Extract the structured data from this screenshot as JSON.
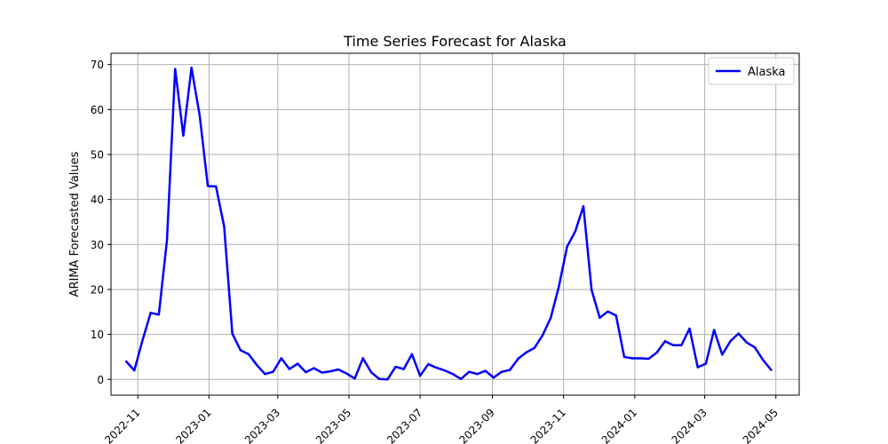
{
  "chart_data": {
    "type": "line",
    "title": "Time Series Forecast for Alaska",
    "xlabel": "",
    "ylabel": "ARIMA Forecasted Values",
    "ylim": [
      -3.5,
      72.5
    ],
    "xlim": [
      "2022-10-09",
      "2024-05-21"
    ],
    "yticks": [
      0,
      10,
      20,
      30,
      40,
      50,
      60,
      70
    ],
    "xticks": [
      "2022-11",
      "2023-01",
      "2023-03",
      "2023-05",
      "2023-07",
      "2023-09",
      "2023-11",
      "2024-01",
      "2024-03",
      "2024-05"
    ],
    "grid": true,
    "legend": {
      "placement": "top-right"
    },
    "colors": {
      "line": "#0000ff",
      "grid": "#b0b0b0"
    },
    "series": [
      {
        "name": "Alaska",
        "points": [
          [
            "2022-10-22",
            4.0
          ],
          [
            "2022-10-29",
            2.0
          ],
          [
            "2022-11-05",
            8.7
          ],
          [
            "2022-11-12",
            14.8
          ],
          [
            "2022-11-19",
            14.4
          ],
          [
            "2022-11-26",
            31.0
          ],
          [
            "2022-12-03",
            69.0
          ],
          [
            "2022-12-10",
            54.2
          ],
          [
            "2022-12-17",
            69.3
          ],
          [
            "2022-12-24",
            58.7
          ],
          [
            "2022-12-31",
            43.0
          ],
          [
            "2023-01-07",
            42.9
          ],
          [
            "2023-01-14",
            34.0
          ],
          [
            "2023-01-21",
            10.2
          ],
          [
            "2023-01-28",
            6.5
          ],
          [
            "2023-02-04",
            5.6
          ],
          [
            "2023-02-11",
            3.2
          ],
          [
            "2023-02-18",
            1.2
          ],
          [
            "2023-02-25",
            1.7
          ],
          [
            "2023-03-04",
            4.7
          ],
          [
            "2023-03-11",
            2.3
          ],
          [
            "2023-03-18",
            3.5
          ],
          [
            "2023-03-25",
            1.6
          ],
          [
            "2023-04-01",
            2.5
          ],
          [
            "2023-04-08",
            1.5
          ],
          [
            "2023-04-15",
            1.8
          ],
          [
            "2023-04-22",
            2.2
          ],
          [
            "2023-04-29",
            1.3
          ],
          [
            "2023-05-06",
            0.2
          ],
          [
            "2023-05-13",
            4.7
          ],
          [
            "2023-05-20",
            1.6
          ],
          [
            "2023-05-27",
            0.1
          ],
          [
            "2023-06-03",
            0.0
          ],
          [
            "2023-06-10",
            2.8
          ],
          [
            "2023-06-17",
            2.3
          ],
          [
            "2023-06-24",
            5.6
          ],
          [
            "2023-07-01",
            0.8
          ],
          [
            "2023-07-08",
            3.4
          ],
          [
            "2023-07-15",
            2.6
          ],
          [
            "2023-07-22",
            2.0
          ],
          [
            "2023-07-29",
            1.2
          ],
          [
            "2023-08-05",
            0.1
          ],
          [
            "2023-08-12",
            1.7
          ],
          [
            "2023-08-19",
            1.2
          ],
          [
            "2023-08-26",
            1.9
          ],
          [
            "2023-09-02",
            0.4
          ],
          [
            "2023-09-09",
            1.7
          ],
          [
            "2023-09-16",
            2.1
          ],
          [
            "2023-09-23",
            4.6
          ],
          [
            "2023-09-30",
            6.0
          ],
          [
            "2023-10-07",
            7.0
          ],
          [
            "2023-10-14",
            9.8
          ],
          [
            "2023-10-21",
            13.7
          ],
          [
            "2023-10-28",
            20.7
          ],
          [
            "2023-11-04",
            29.5
          ],
          [
            "2023-11-11",
            32.9
          ],
          [
            "2023-11-18",
            38.5
          ],
          [
            "2023-11-25",
            19.9
          ],
          [
            "2023-12-02",
            13.7
          ],
          [
            "2023-12-09",
            15.1
          ],
          [
            "2023-12-16",
            14.2
          ],
          [
            "2023-12-23",
            5.0
          ],
          [
            "2023-12-30",
            4.7
          ],
          [
            "2024-01-06",
            4.7
          ],
          [
            "2024-01-13",
            4.6
          ],
          [
            "2024-01-20",
            6.0
          ],
          [
            "2024-01-27",
            8.5
          ],
          [
            "2024-02-03",
            7.6
          ],
          [
            "2024-02-10",
            7.6
          ],
          [
            "2024-02-17",
            11.3
          ],
          [
            "2024-02-24",
            2.7
          ],
          [
            "2024-03-02",
            3.5
          ],
          [
            "2024-03-09",
            11.0
          ],
          [
            "2024-03-16",
            5.5
          ],
          [
            "2024-03-23",
            8.5
          ],
          [
            "2024-03-30",
            10.2
          ],
          [
            "2024-04-06",
            8.2
          ],
          [
            "2024-04-13",
            7.1
          ],
          [
            "2024-04-20",
            4.3
          ],
          [
            "2024-04-27",
            2.1
          ]
        ]
      }
    ]
  }
}
